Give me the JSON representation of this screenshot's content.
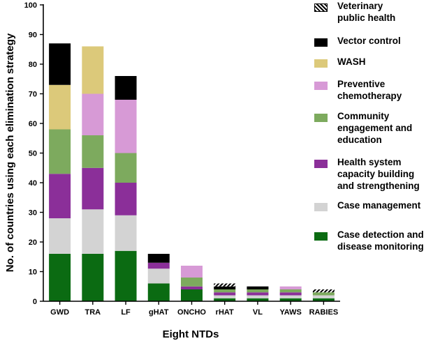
{
  "chart_data": {
    "type": "bar",
    "stacked": true,
    "title": "",
    "xlabel": "Eight NTDs",
    "ylabel": "No. of countries using each elimination strategy",
    "ylim": [
      0,
      100
    ],
    "yticks": [
      0,
      10,
      20,
      30,
      40,
      50,
      60,
      70,
      80,
      90,
      100
    ],
    "categories": [
      "GWD",
      "TRA",
      "LF",
      "gHAT",
      "ONCHO",
      "rHAT",
      "VL",
      "YAWS",
      "RABIES"
    ],
    "series": [
      {
        "name": "Case detection and disease monitoring",
        "color": "#0b6b12",
        "values": [
          16,
          16,
          17,
          6,
          4,
          1,
          1,
          1,
          1
        ]
      },
      {
        "name": "Case management",
        "color": "#d3d3d3",
        "values": [
          12,
          15,
          12,
          5,
          0,
          1,
          1,
          1,
          1
        ]
      },
      {
        "name": "Health system capacity building and strengthening",
        "color": "#8b2f99",
        "values": [
          15,
          14,
          11,
          2,
          1,
          1,
          1,
          1,
          0
        ]
      },
      {
        "name": "Community engagement and education",
        "color": "#7daa5e",
        "values": [
          15,
          11,
          10,
          0,
          3,
          1,
          1,
          1,
          1
        ]
      },
      {
        "name": "Preventive chemotherapy",
        "color": "#d79ad6",
        "values": [
          0,
          14,
          18,
          0,
          4,
          0,
          0,
          1,
          0
        ]
      },
      {
        "name": "WASH",
        "color": "#dcc97a",
        "values": [
          15,
          16,
          0,
          0,
          0,
          0,
          0,
          0,
          0
        ]
      },
      {
        "name": "Vector control",
        "color": "#000000",
        "values": [
          14,
          0,
          8,
          3,
          0,
          1,
          1,
          0,
          0
        ]
      },
      {
        "name": "Veterinary public health",
        "color": "hatch",
        "values": [
          0,
          0,
          0,
          0,
          0,
          1,
          0,
          0,
          1
        ]
      }
    ],
    "legend_position": "right",
    "grid": false
  },
  "legend": {
    "items": [
      {
        "label": "Veterinary\npublic health",
        "color": "hatch"
      },
      {
        "label": "Vector control",
        "color": "#000000"
      },
      {
        "label": "WASH",
        "color": "#dcc97a"
      },
      {
        "label": "Preventive\nchemotherapy",
        "color": "#d79ad6"
      },
      {
        "label": "Community\nengagement and\neducation",
        "color": "#7daa5e"
      },
      {
        "label": "Health system\ncapacity building\nand strengthening",
        "color": "#8b2f99"
      },
      {
        "label": "Case management",
        "color": "#d3d3d3"
      },
      {
        "label": "Case detection and\ndisease monitoring",
        "color": "#0b6b12"
      }
    ]
  }
}
